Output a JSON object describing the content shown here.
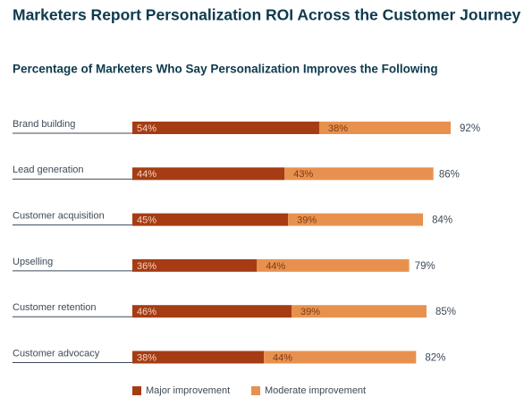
{
  "chart_data": {
    "type": "stacked-bar-horizontal",
    "title": "Marketers Report Personalization ROI Across the Customer Journey",
    "subtitle": "Percentage of Marketers Who Say Personalization Improves the Following",
    "categories": [
      "Brand building",
      "Lead generation",
      "Customer acquisition",
      "Upselling",
      "Customer retention",
      "Customer advocacy"
    ],
    "series": [
      {
        "name": "Major improvement",
        "color": "#a63c14",
        "values": [
          54,
          44,
          45,
          36,
          46,
          38
        ],
        "value_labels": [
          "54%",
          "44%",
          "45%",
          "36%",
          "46%",
          "38%"
        ]
      },
      {
        "name": "Moderate improvement",
        "color": "#e8914f",
        "values": [
          38,
          43,
          39,
          44,
          39,
          44
        ],
        "value_labels": [
          "38%",
          "43%",
          "39%",
          "44%",
          "39%",
          "44%"
        ]
      }
    ],
    "totals": [
      92,
      86,
      84,
      79,
      85,
      82
    ],
    "total_labels": [
      "92%",
      "86%",
      "84%",
      "79%",
      "85%",
      "82%"
    ]
  }
}
